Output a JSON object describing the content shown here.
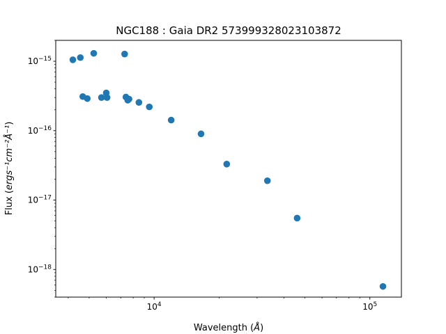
{
  "chart_data": {
    "type": "scatter",
    "title": "NGC188 : Gaia DR2 573999328023103872",
    "xlabel_text": "Wavelength (",
    "xlabel_symbol": "Å",
    "xlabel_close": ")",
    "ylabel_text": "Flux (",
    "ylabel_math": "ergs⁻¹cm⁻²Å⁻¹",
    "ylabel_close": ")",
    "xscale": "log",
    "yscale": "log",
    "xlim": [
      3500,
      140000
    ],
    "ylim": [
      4e-19,
      2e-15
    ],
    "x_ticks": [
      {
        "value": 10000,
        "base": "10",
        "exp": "4"
      },
      {
        "value": 100000,
        "base": "10",
        "exp": "5"
      }
    ],
    "y_ticks": [
      {
        "value": 1e-18,
        "base": "10",
        "exp": "−18"
      },
      {
        "value": 1e-17,
        "base": "10",
        "exp": "−17"
      },
      {
        "value": 1e-16,
        "base": "10",
        "exp": "−16"
      },
      {
        "value": 1e-15,
        "base": "10",
        "exp": "−15"
      }
    ],
    "marker_color": "#1f77b4",
    "grid": false,
    "points": [
      {
        "x": 4200,
        "y": 1.05e-15
      },
      {
        "x": 4550,
        "y": 1.13e-15
      },
      {
        "x": 5250,
        "y": 1.3e-15
      },
      {
        "x": 7300,
        "y": 1.27e-15
      },
      {
        "x": 4670,
        "y": 3.1e-16
      },
      {
        "x": 4900,
        "y": 2.9e-16
      },
      {
        "x": 5700,
        "y": 3e-16
      },
      {
        "x": 6000,
        "y": 3.5e-16
      },
      {
        "x": 6050,
        "y": 3e-16
      },
      {
        "x": 7400,
        "y": 3.05e-16
      },
      {
        "x": 7550,
        "y": 2.75e-16
      },
      {
        "x": 7650,
        "y": 2.85e-16
      },
      {
        "x": 8500,
        "y": 2.55e-16
      },
      {
        "x": 9500,
        "y": 2.2e-16
      },
      {
        "x": 12000,
        "y": 1.42e-16
      },
      {
        "x": 16500,
        "y": 9e-17
      },
      {
        "x": 21700,
        "y": 3.3e-17
      },
      {
        "x": 33500,
        "y": 1.9e-17
      },
      {
        "x": 46000,
        "y": 5.5e-18
      },
      {
        "x": 115000,
        "y": 5.7e-19
      }
    ]
  }
}
